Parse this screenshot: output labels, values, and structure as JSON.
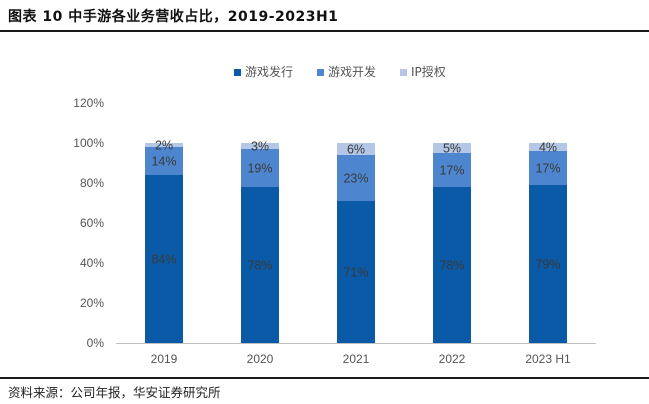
{
  "header": {
    "title": "图表 10  中手游各业务营收占比，2019-2023H1"
  },
  "footer": {
    "source": "资料来源：公司年报，华安证券研究所"
  },
  "colors": {
    "series": [
      "#0a5aa8",
      "#4d86cf",
      "#b4c7e7"
    ]
  },
  "chart_data": {
    "type": "bar",
    "stacked": true,
    "title": "图表 10  中手游各业务营收占比，2019-2023H1",
    "categories": [
      "2019",
      "2020",
      "2021",
      "2022",
      "2023 H1"
    ],
    "series": [
      {
        "name": "游戏发行",
        "values": [
          84,
          78,
          71,
          78,
          79
        ],
        "labels": [
          "84%",
          "78%",
          "71%",
          "78%",
          "79%"
        ]
      },
      {
        "name": "游戏开发",
        "values": [
          14,
          19,
          23,
          17,
          17
        ],
        "labels": [
          "14%",
          "19%",
          "23%",
          "17%",
          "17%"
        ]
      },
      {
        "name": "IP授权",
        "values": [
          2,
          3,
          6,
          5,
          4
        ],
        "labels": [
          "2%",
          "3%",
          "6%",
          "5%",
          "4%"
        ]
      }
    ],
    "ylim": [
      0,
      120
    ],
    "yticks": [
      "0%",
      "20%",
      "40%",
      "60%",
      "80%",
      "100%",
      "120%"
    ],
    "ytick_values": [
      0,
      20,
      40,
      60,
      80,
      100,
      120
    ],
    "legend": "top-center",
    "grid": false,
    "xlabel": "",
    "ylabel": ""
  }
}
